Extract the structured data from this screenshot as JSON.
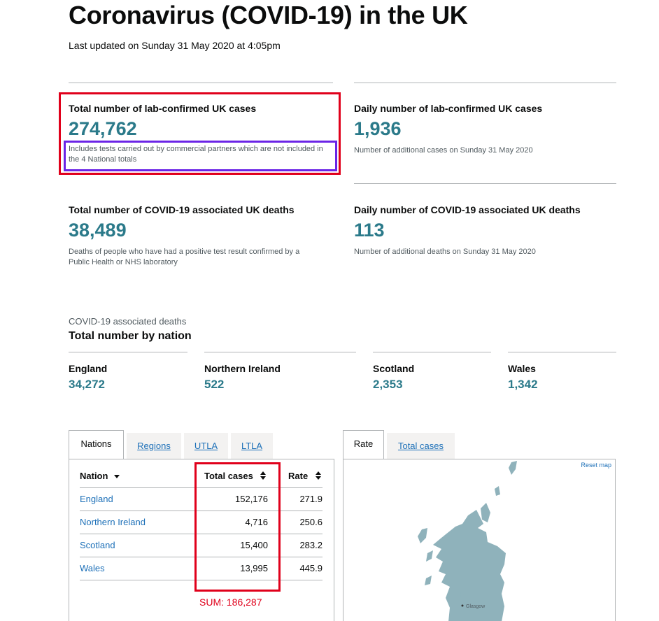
{
  "header": {
    "title": "Coronavirus (COVID-19) in the UK",
    "updated": "Last updated on Sunday 31 May 2020 at 4:05pm"
  },
  "cards": {
    "total_cases": {
      "heading": "Total number of lab-confirmed UK cases",
      "value": "274,762",
      "note": "Includes tests carried out by commercial partners which are not included in the 4 National totals"
    },
    "daily_cases": {
      "heading": "Daily number of lab-confirmed UK cases",
      "value": "1,936",
      "note": "Number of additional cases on Sunday 31 May 2020"
    },
    "total_deaths": {
      "heading": "Total number of COVID-19 associated UK deaths",
      "value": "38,489",
      "note": "Deaths of people who have had a positive test result confirmed by a Public Health or NHS laboratory"
    },
    "daily_deaths": {
      "heading": "Daily number of COVID-19 associated UK deaths",
      "value": "113",
      "note": "Number of additional deaths on Sunday 31 May 2020"
    }
  },
  "deaths_by_nation": {
    "caption": "COVID-19 associated deaths",
    "heading": "Total number by nation",
    "nations": [
      {
        "name": "England",
        "value": "34,272"
      },
      {
        "name": "Northern Ireland",
        "value": "522"
      },
      {
        "name": "Scotland",
        "value": "2,353"
      },
      {
        "name": "Wales",
        "value": "1,342"
      }
    ]
  },
  "table_tabs": [
    "Nations",
    "Regions",
    "UTLA",
    "LTLA"
  ],
  "table": {
    "columns": [
      "Nation",
      "Total cases",
      "Rate"
    ],
    "rows": [
      {
        "nation": "England",
        "total": "152,176",
        "rate": "271.9"
      },
      {
        "nation": "Northern Ireland",
        "total": "4,716",
        "rate": "250.6"
      },
      {
        "nation": "Scotland",
        "total": "15,400",
        "rate": "283.2"
      },
      {
        "nation": "Wales",
        "total": "13,995",
        "rate": "445.9"
      }
    ],
    "sum_annotation": "SUM: 186,287"
  },
  "map_tabs": [
    "Rate",
    "Total cases"
  ],
  "map": {
    "reset_label": "Reset map",
    "place_label": "Glasgow",
    "land_color": "#8fb2bb"
  },
  "colors": {
    "accent": "#2b7a8a",
    "link": "#1d70b8",
    "highlight_red": "#e0001b",
    "highlight_purple": "#6b24e6"
  }
}
